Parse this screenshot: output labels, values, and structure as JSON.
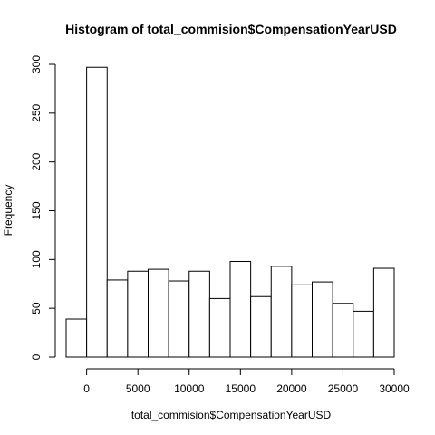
{
  "chart_data": {
    "type": "bar",
    "title": "Histogram of total_commision$CompensationYearUSD",
    "xlabel": "total_commision$CompensationYearUSD",
    "ylabel": "Frequency",
    "bin_width": 2000,
    "bin_starts": [
      -2000,
      0,
      2000,
      4000,
      6000,
      8000,
      10000,
      12000,
      14000,
      16000,
      18000,
      20000,
      22000,
      24000,
      26000,
      28000
    ],
    "values": [
      39,
      297,
      79,
      88,
      90,
      78,
      88,
      60,
      98,
      62,
      93,
      74,
      77,
      55,
      47,
      91
    ],
    "xlim": [
      -2000,
      30000
    ],
    "ylim": [
      0,
      300
    ],
    "x_ticks": [
      0,
      5000,
      10000,
      15000,
      20000,
      25000,
      30000
    ],
    "x_tick_labels": [
      "0",
      "5000",
      "10000",
      "15000",
      "20000",
      "25000",
      "30000"
    ],
    "y_ticks": [
      0,
      50,
      100,
      150,
      200,
      250,
      300
    ],
    "y_tick_labels": [
      "0",
      "50",
      "100",
      "150",
      "200",
      "250",
      "300"
    ],
    "grid": false
  }
}
